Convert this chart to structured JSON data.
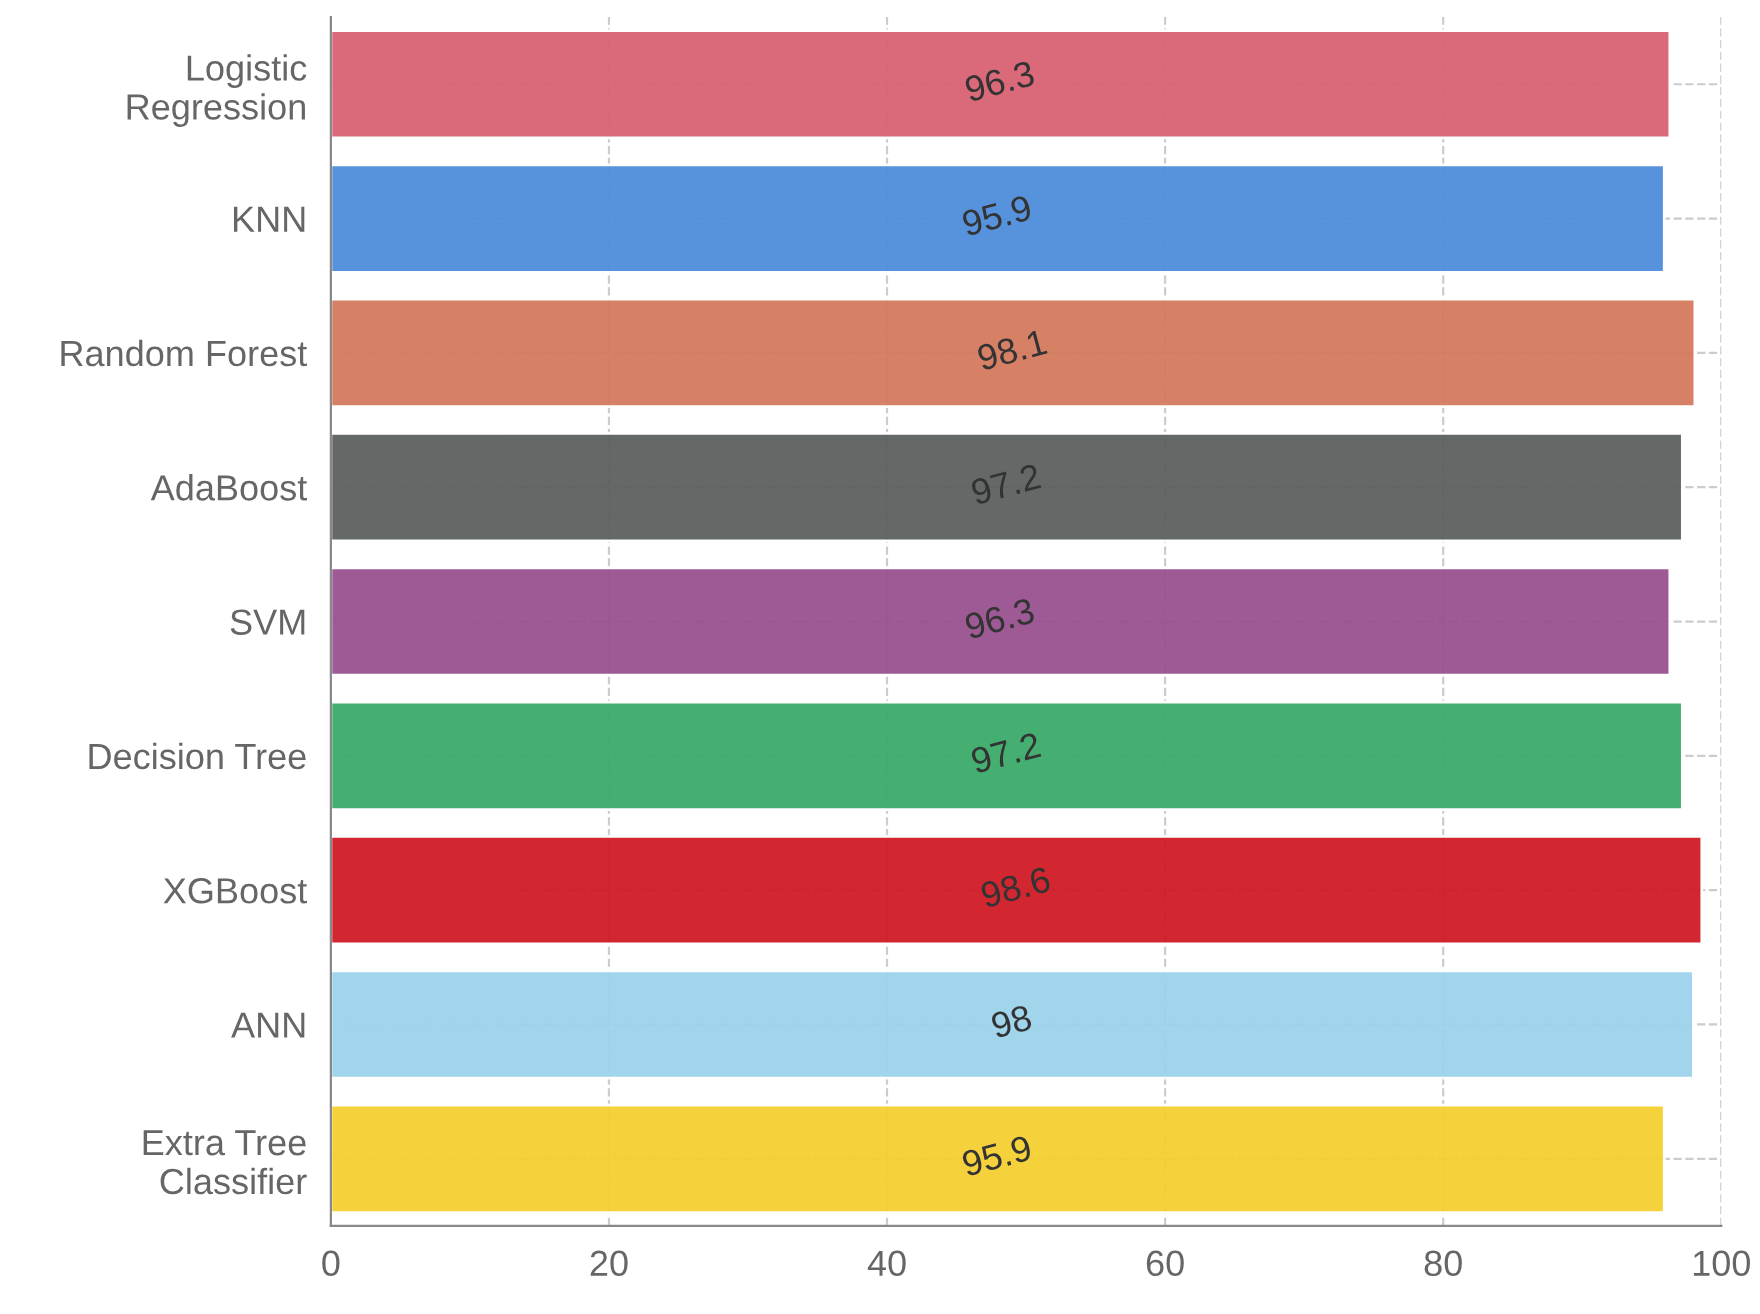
{
  "chart_data": {
    "type": "bar",
    "orientation": "horizontal",
    "categories": [
      "Logistic\nRegression",
      "KNN",
      "Random Forest",
      "AdaBoost",
      "SVM",
      "Decision Tree",
      "XGBoost",
      "ANN",
      "Extra Tree\nClassifier"
    ],
    "values": [
      96.3,
      95.9,
      98.1,
      97.2,
      96.3,
      97.2,
      98.6,
      98,
      95.9
    ],
    "colors": [
      "#d96373",
      "#4f8edb",
      "#d47a5e",
      "#5c605e",
      "#98528f",
      "#3cab6a",
      "#d01c27",
      "#9bd3ec",
      "#f5cf32"
    ],
    "xlim": [
      0,
      100
    ],
    "xticks": [
      0,
      20,
      40,
      60,
      80,
      100
    ],
    "grid": true,
    "data_labels": true
  }
}
